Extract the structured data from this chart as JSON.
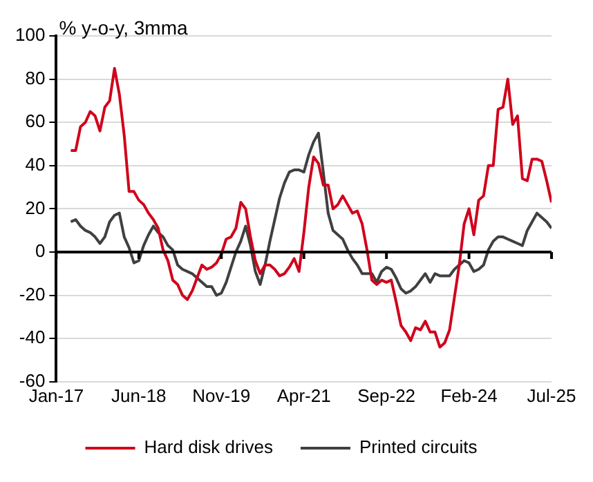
{
  "chart_data": {
    "type": "line",
    "ylabel": "% y-o-y, 3mma",
    "xlim": [
      "2017-01",
      "2025-07"
    ],
    "xticks": [
      {
        "value": "2017-01",
        "label": "Jan-17"
      },
      {
        "value": "2018-06",
        "label": "Jun-18"
      },
      {
        "value": "2019-11",
        "label": "Nov-19"
      },
      {
        "value": "2021-04",
        "label": "Apr-21"
      },
      {
        "value": "2022-09",
        "label": "Sep-22"
      },
      {
        "value": "2024-02",
        "label": "Feb-24"
      },
      {
        "value": "2025-07",
        "label": "Jul-25"
      }
    ],
    "ylim": [
      -60,
      100
    ],
    "yticks": [
      -60,
      -40,
      -20,
      0,
      20,
      40,
      60,
      80,
      100
    ],
    "grid": "y",
    "legend": "bottom",
    "marker": "none",
    "line_style": "solid",
    "x": [
      "2017-04",
      "2017-05",
      "2017-06",
      "2017-07",
      "2017-08",
      "2017-09",
      "2017-10",
      "2017-11",
      "2017-12",
      "2018-01",
      "2018-02",
      "2018-03",
      "2018-04",
      "2018-05",
      "2018-06",
      "2018-07",
      "2018-08",
      "2018-09",
      "2018-10",
      "2018-11",
      "2018-12",
      "2019-01",
      "2019-02",
      "2019-03",
      "2019-04",
      "2019-05",
      "2019-06",
      "2019-07",
      "2019-08",
      "2019-09",
      "2019-10",
      "2019-11",
      "2019-12",
      "2020-01",
      "2020-02",
      "2020-03",
      "2020-04",
      "2020-05",
      "2020-06",
      "2020-07",
      "2020-08",
      "2020-09",
      "2020-10",
      "2020-11",
      "2020-12",
      "2021-01",
      "2021-02",
      "2021-03",
      "2021-04",
      "2021-05",
      "2021-06",
      "2021-07",
      "2021-08",
      "2021-09",
      "2021-10",
      "2021-11",
      "2021-12",
      "2022-01",
      "2022-02",
      "2022-03",
      "2022-04",
      "2022-05",
      "2022-06",
      "2022-07",
      "2022-08",
      "2022-09",
      "2022-10",
      "2022-11",
      "2022-12",
      "2023-01",
      "2023-02",
      "2023-03",
      "2023-04",
      "2023-05",
      "2023-06",
      "2023-07",
      "2023-08",
      "2023-09",
      "2023-10",
      "2023-11",
      "2023-12",
      "2024-01",
      "2024-02",
      "2024-03",
      "2024-04",
      "2024-05",
      "2024-06",
      "2024-07",
      "2024-08",
      "2024-09",
      "2024-10",
      "2024-11",
      "2024-12",
      "2025-01",
      "2025-02",
      "2025-03",
      "2025-04",
      "2025-05",
      "2025-06",
      "2025-07"
    ],
    "series": [
      {
        "name": "Hard disk drives",
        "color": "#d0021b",
        "values": [
          47,
          47,
          58,
          60,
          65,
          63,
          56,
          67,
          70,
          85,
          73,
          54,
          28,
          28,
          24,
          22,
          18,
          15,
          11,
          1,
          -4,
          -13,
          -15,
          -20,
          -22,
          -18,
          -12,
          -6,
          -8,
          -7,
          -5,
          -1,
          6,
          7,
          11,
          23,
          20,
          7,
          -4,
          -10,
          -6,
          -6,
          -8,
          -11,
          -10,
          -7,
          -3,
          -9,
          9,
          30,
          44,
          41,
          31,
          31,
          20,
          22,
          26,
          22,
          18,
          19,
          13,
          1,
          -13,
          -15,
          -13,
          -14,
          -13,
          -23,
          -34,
          -37,
          -41,
          -35,
          -36,
          -32,
          -37,
          -37,
          -44,
          -42,
          -36,
          -21,
          -6,
          13,
          20,
          8,
          24,
          26,
          40,
          40,
          66,
          67,
          80,
          59,
          63,
          34,
          33,
          43,
          43,
          42,
          33,
          23
        ]
      },
      {
        "name": "Printed circuits",
        "color": "#404040",
        "values": [
          14,
          15,
          12,
          10,
          9,
          7,
          4,
          7,
          14,
          17,
          18,
          7,
          2,
          -5,
          -4,
          3,
          8,
          12,
          9,
          7,
          3,
          1,
          -6,
          -8,
          -9,
          -10,
          -12,
          -14,
          -16,
          -16,
          -20,
          -19,
          -14,
          -7,
          0,
          5,
          12,
          3,
          -9,
          -15,
          -6,
          5,
          15,
          25,
          32,
          37,
          38,
          38,
          37,
          45,
          51,
          55,
          37,
          18,
          10,
          8,
          6,
          1,
          -3,
          -6,
          -10,
          -10,
          -10,
          -14,
          -9,
          -7,
          -8,
          -12,
          -17,
          -19,
          -18,
          -16,
          -13,
          -10,
          -14,
          -10,
          -11,
          -11,
          -11,
          -8,
          -6,
          -4,
          -5,
          -9,
          -8,
          -6,
          1,
          5,
          7,
          7,
          6,
          5,
          4,
          3,
          10,
          14,
          18,
          16,
          14,
          11
        ]
      }
    ]
  }
}
